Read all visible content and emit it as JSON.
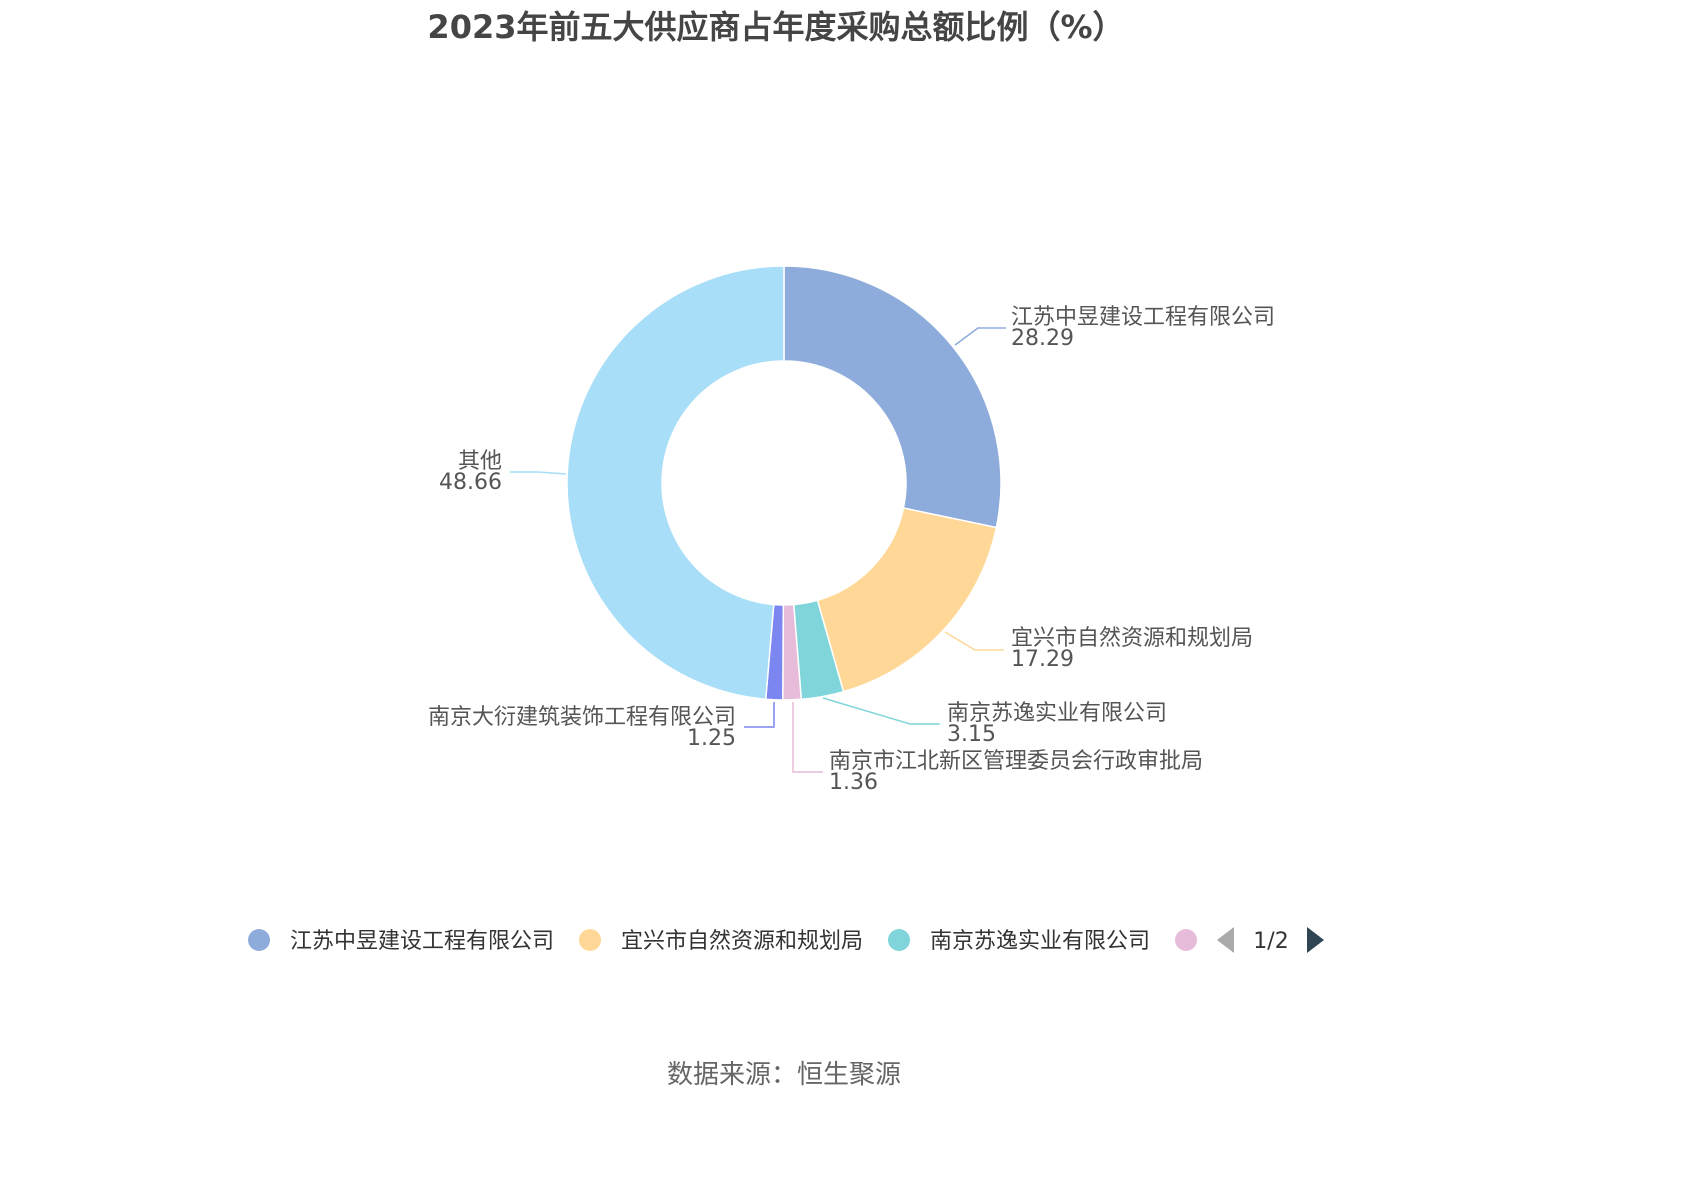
{
  "chart_data": {
    "type": "pie",
    "variant": "donut",
    "title": "2023年前五大供应商占年度采购总额比例（%）",
    "slices": [
      {
        "name": "江苏中昱建设工程有限公司",
        "value": 28.29,
        "label": "28.29",
        "color": "#8EACDB"
      },
      {
        "name": "宜兴市自然资源和规划局",
        "value": 17.29,
        "label": "17.29",
        "color": "#FFD897"
      },
      {
        "name": "南京苏逸实业有限公司",
        "value": 3.15,
        "label": "3.15",
        "color": "#7FD5D9"
      },
      {
        "name": "南京市江北新区管理委员会行政审批局",
        "value": 1.36,
        "label": "1.36",
        "color": "#E7BCDA"
      },
      {
        "name": "南京大衍建筑装饰工程有限公司",
        "value": 1.25,
        "label": "1.25",
        "color": "#7B86F0"
      },
      {
        "name": "其他",
        "value": 48.66,
        "label": "48.66",
        "color": "#A8DEF8"
      }
    ],
    "legend": {
      "placement": "bottom",
      "visible_items": [
        "江苏中昱建设工程有限公司",
        "宜兴市自然资源和规划局",
        "南京苏逸实业有限公司"
      ],
      "page_indicator": "1/2"
    }
  },
  "source_note": "数据来源：恒生聚源"
}
